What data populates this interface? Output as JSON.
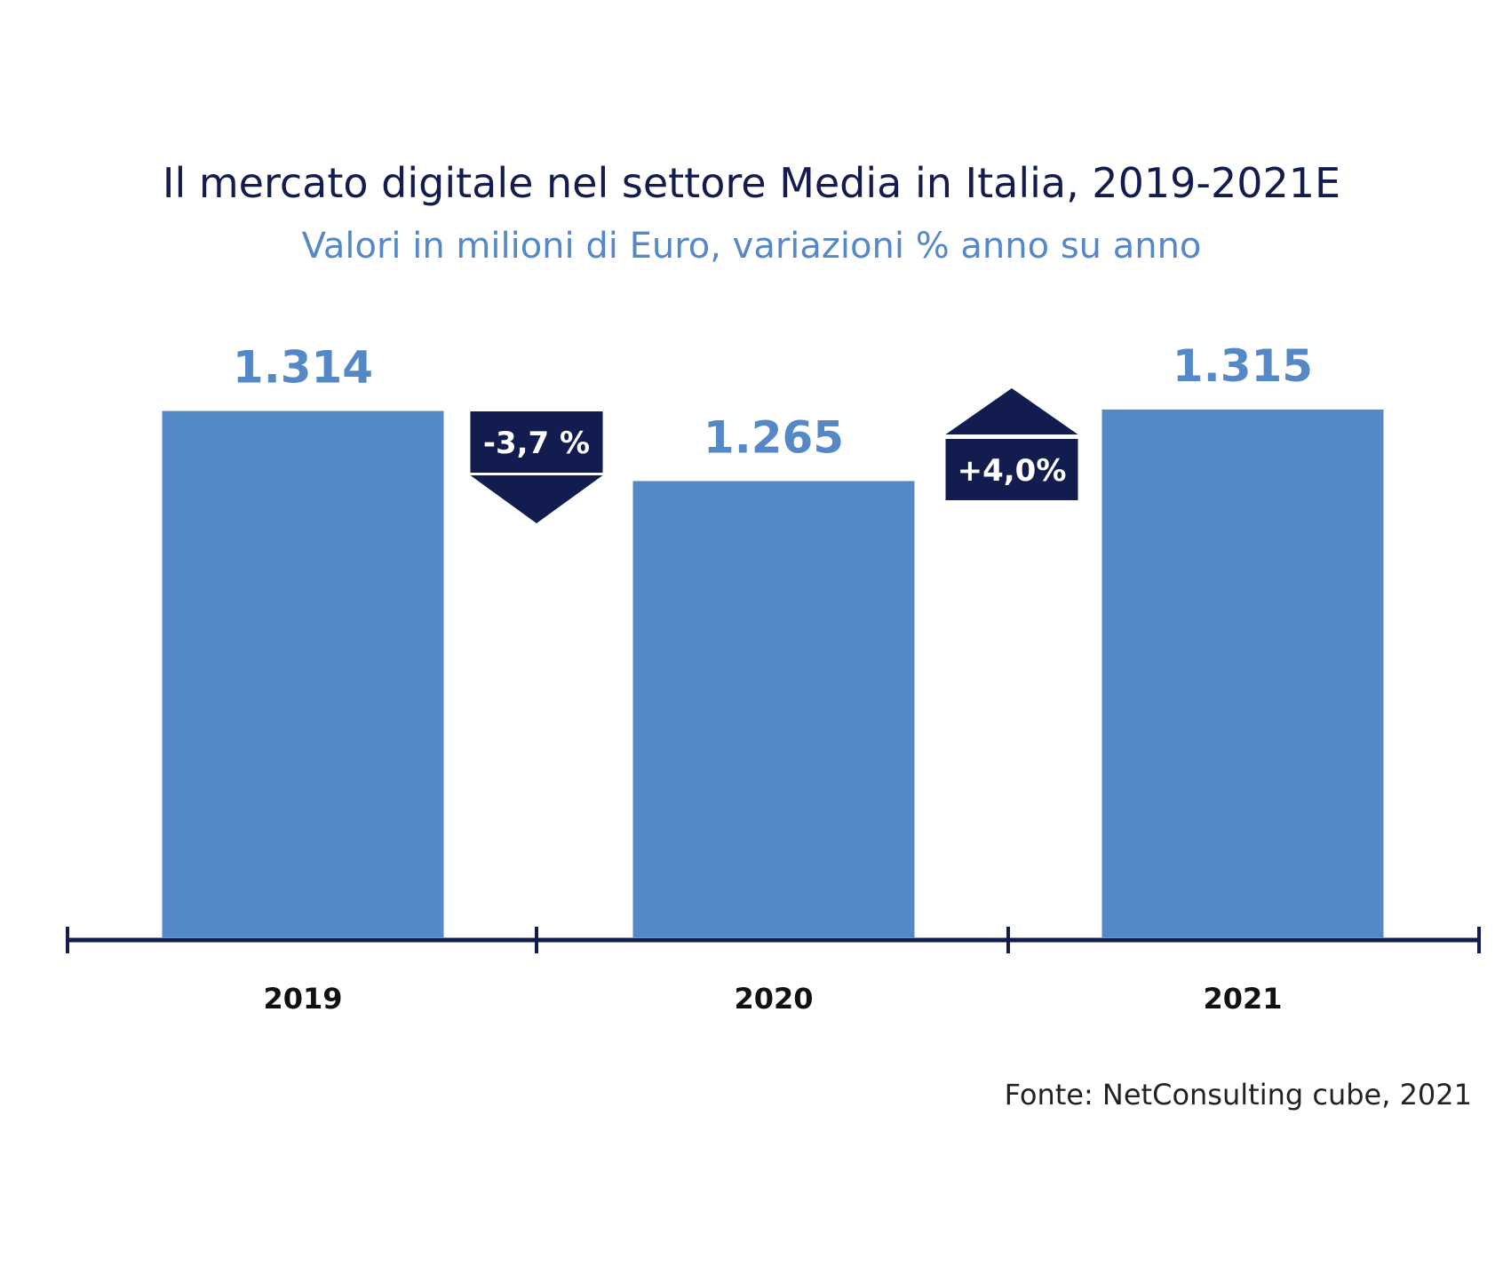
{
  "chart_data": {
    "type": "bar",
    "title": "Il mercato digitale nel settore Media in Italia, 2019-2021E",
    "subtitle": "Valori in milioni di Euro, variazioni % anno su anno",
    "categories": [
      "2019",
      "2020",
      "2021"
    ],
    "values": [
      1314,
      1265,
      1315
    ],
    "value_labels": [
      "1.314",
      "1.265",
      "1.315"
    ],
    "changes": [
      {
        "label": "-3,7 %",
        "direction": "down",
        "value": -3.7
      },
      {
        "label": "+4,0%",
        "direction": "up",
        "value": 4.0
      }
    ],
    "xlabel": "",
    "ylabel": "",
    "grid": false,
    "source": "Fonte: NetConsulting cube, 2021",
    "colors": {
      "bar": "#5588C7",
      "accent": "#121C4F",
      "subtitle": "#5588C7"
    }
  }
}
